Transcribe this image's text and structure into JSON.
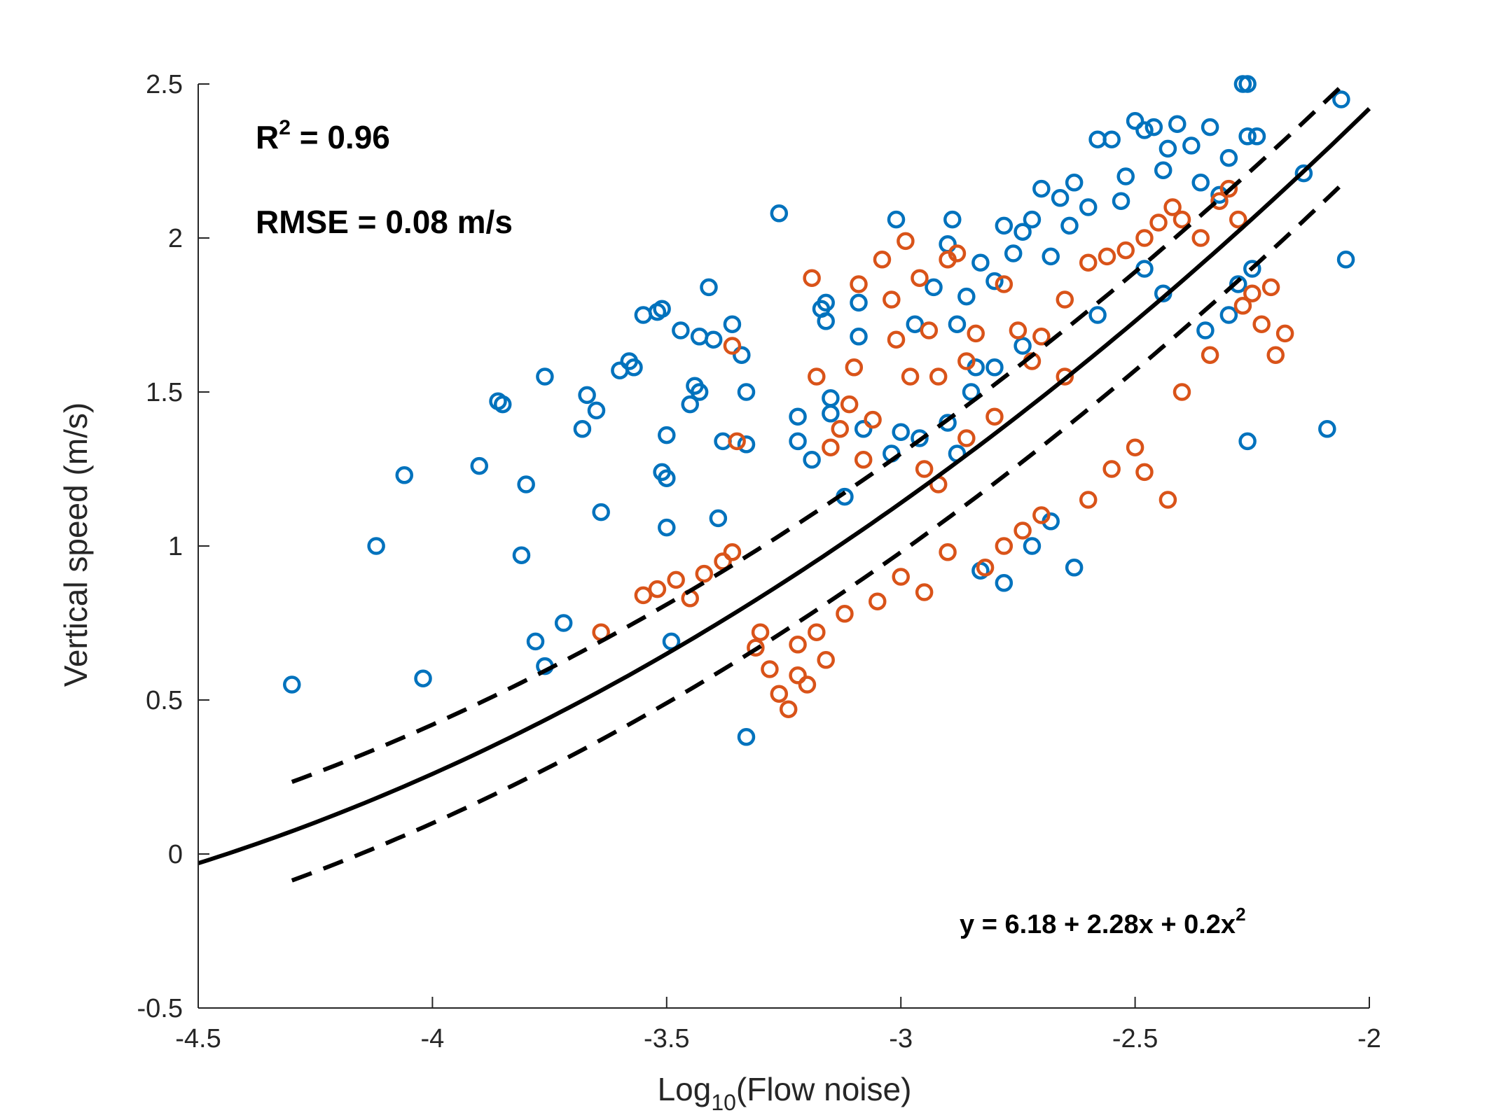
{
  "chart_data": {
    "type": "scatter",
    "xlabel_main": "Log",
    "xlabel_sub": "10",
    "xlabel_rest": "(Flow noise)",
    "ylabel": "Vertical speed (m/s)",
    "xlim": [
      -4.5,
      -2
    ],
    "ylim": [
      -0.5,
      2.5
    ],
    "xticks": [
      "-4.5",
      "-4",
      "-3.5",
      "-3",
      "-2.5",
      "-2"
    ],
    "yticks": [
      "-0.5",
      "0",
      "0.5",
      "1",
      "1.5",
      "2",
      "2.5"
    ],
    "grid": false,
    "annotations": {
      "r2_main": "R",
      "r2_sup": "2",
      "r2_rest": " = 0.96",
      "rmse": "RMSE = 0.08 m/s",
      "equation_main": "y = 6.18 + 2.28x + 0.2x",
      "equation_sup": "2"
    },
    "colors": {
      "series_blue": "#0072bd",
      "series_orange": "#d95319",
      "fit": "#000000",
      "axis": "#262626"
    },
    "fit": {
      "coefficients": [
        6.18,
        2.28,
        0.2
      ],
      "x_range": [
        -4.5,
        -2.0
      ],
      "ci_offset": 0.16,
      "ci_x_range": [
        -4.3,
        -2.05
      ]
    },
    "series": [
      {
        "color": "#0072bd",
        "points": [
          [
            -4.3,
            0.55
          ],
          [
            -4.12,
            1.0
          ],
          [
            -4.06,
            1.23
          ],
          [
            -4.02,
            0.57
          ],
          [
            -3.9,
            1.26
          ],
          [
            -3.86,
            1.47
          ],
          [
            -3.85,
            1.46
          ],
          [
            -3.8,
            1.2
          ],
          [
            -3.81,
            0.97
          ],
          [
            -3.78,
            0.69
          ],
          [
            -3.76,
            1.55
          ],
          [
            -3.76,
            0.61
          ],
          [
            -3.72,
            0.75
          ],
          [
            -3.68,
            1.38
          ],
          [
            -3.67,
            1.49
          ],
          [
            -3.65,
            1.44
          ],
          [
            -3.64,
            1.11
          ],
          [
            -3.6,
            1.57
          ],
          [
            -3.58,
            1.6
          ],
          [
            -3.57,
            1.58
          ],
          [
            -3.55,
            1.75
          ],
          [
            -3.52,
            1.76
          ],
          [
            -3.51,
            1.77
          ],
          [
            -3.5,
            1.36
          ],
          [
            -3.51,
            1.24
          ],
          [
            -3.5,
            1.22
          ],
          [
            -3.5,
            1.06
          ],
          [
            -3.49,
            0.69
          ],
          [
            -3.47,
            1.7
          ],
          [
            -3.45,
            1.46
          ],
          [
            -3.44,
            1.52
          ],
          [
            -3.43,
            1.5
          ],
          [
            -3.43,
            1.68
          ],
          [
            -3.41,
            1.84
          ],
          [
            -3.4,
            1.67
          ],
          [
            -3.39,
            1.09
          ],
          [
            -3.38,
            1.34
          ],
          [
            -3.36,
            1.72
          ],
          [
            -3.34,
            1.62
          ],
          [
            -3.33,
            1.5
          ],
          [
            -3.33,
            1.33
          ],
          [
            -3.33,
            0.38
          ],
          [
            -3.26,
            2.08
          ],
          [
            -3.22,
            1.42
          ],
          [
            -3.22,
            1.34
          ],
          [
            -3.19,
            1.28
          ],
          [
            -3.17,
            1.77
          ],
          [
            -3.16,
            1.79
          ],
          [
            -3.16,
            1.73
          ],
          [
            -3.15,
            1.48
          ],
          [
            -3.15,
            1.43
          ],
          [
            -3.12,
            1.16
          ],
          [
            -3.09,
            1.68
          ],
          [
            -3.09,
            1.79
          ],
          [
            -3.01,
            2.06
          ],
          [
            -3.0,
            1.37
          ],
          [
            -2.97,
            1.72
          ],
          [
            -2.93,
            1.84
          ],
          [
            -2.9,
            1.98
          ],
          [
            -2.89,
            2.06
          ],
          [
            -2.88,
            1.72
          ],
          [
            -2.86,
            1.81
          ],
          [
            -2.84,
            1.58
          ],
          [
            -2.83,
            1.92
          ],
          [
            -2.8,
            1.86
          ],
          [
            -2.78,
            2.04
          ],
          [
            -2.76,
            1.95
          ],
          [
            -2.74,
            2.02
          ],
          [
            -2.72,
            2.06
          ],
          [
            -2.7,
            2.16
          ],
          [
            -2.68,
            1.94
          ],
          [
            -2.66,
            2.13
          ],
          [
            -2.64,
            2.04
          ],
          [
            -2.63,
            2.18
          ],
          [
            -2.6,
            2.1
          ],
          [
            -2.58,
            2.32
          ],
          [
            -2.55,
            2.32
          ],
          [
            -2.53,
            2.12
          ],
          [
            -2.52,
            2.2
          ],
          [
            -2.5,
            2.38
          ],
          [
            -2.48,
            2.35
          ],
          [
            -2.46,
            2.36
          ],
          [
            -2.44,
            2.22
          ],
          [
            -2.43,
            2.29
          ],
          [
            -2.41,
            2.37
          ],
          [
            -2.38,
            2.3
          ],
          [
            -2.36,
            2.18
          ],
          [
            -2.34,
            2.36
          ],
          [
            -2.32,
            2.14
          ],
          [
            -2.3,
            2.26
          ],
          [
            -2.27,
            2.5
          ],
          [
            -2.26,
            2.5
          ],
          [
            -2.26,
            2.33
          ],
          [
            -2.24,
            2.33
          ],
          [
            -2.26,
            1.34
          ],
          [
            -2.14,
            2.21
          ],
          [
            -2.09,
            1.38
          ],
          [
            -2.06,
            2.45
          ],
          [
            -2.05,
            1.93
          ],
          [
            -2.3,
            1.75
          ],
          [
            -2.28,
            1.85
          ],
          [
            -2.35,
            1.7
          ],
          [
            -2.25,
            1.9
          ],
          [
            -2.44,
            1.82
          ],
          [
            -2.48,
            1.9
          ],
          [
            -2.58,
            1.75
          ],
          [
            -2.63,
            0.93
          ],
          [
            -2.78,
            0.88
          ],
          [
            -2.83,
            0.92
          ],
          [
            -2.68,
            1.08
          ],
          [
            -2.72,
            1.0
          ],
          [
            -2.96,
            1.35
          ],
          [
            -3.02,
            1.3
          ],
          [
            -3.08,
            1.38
          ],
          [
            -2.9,
            1.4
          ],
          [
            -2.85,
            1.5
          ],
          [
            -2.88,
            1.3
          ],
          [
            -2.8,
            1.58
          ],
          [
            -2.74,
            1.65
          ]
        ]
      },
      {
        "color": "#d95319",
        "points": [
          [
            -3.64,
            0.72
          ],
          [
            -3.55,
            0.84
          ],
          [
            -3.52,
            0.86
          ],
          [
            -3.48,
            0.89
          ],
          [
            -3.45,
            0.83
          ],
          [
            -3.42,
            0.91
          ],
          [
            -3.38,
            0.95
          ],
          [
            -3.36,
            0.98
          ],
          [
            -3.35,
            1.34
          ],
          [
            -3.36,
            1.65
          ],
          [
            -3.31,
            0.67
          ],
          [
            -3.28,
            0.6
          ],
          [
            -3.26,
            0.52
          ],
          [
            -3.24,
            0.47
          ],
          [
            -3.22,
            0.58
          ],
          [
            -3.2,
            0.55
          ],
          [
            -3.19,
            1.87
          ],
          [
            -3.18,
            1.55
          ],
          [
            -3.16,
            0.63
          ],
          [
            -3.13,
            1.38
          ],
          [
            -3.11,
            1.46
          ],
          [
            -3.1,
            1.58
          ],
          [
            -3.09,
            1.85
          ],
          [
            -3.06,
            1.41
          ],
          [
            -3.04,
            1.93
          ],
          [
            -3.02,
            1.8
          ],
          [
            -3.01,
            1.67
          ],
          [
            -2.99,
            1.99
          ],
          [
            -2.98,
            1.55
          ],
          [
            -2.96,
            1.87
          ],
          [
            -2.94,
            1.7
          ],
          [
            -2.92,
            1.55
          ],
          [
            -2.9,
            1.93
          ],
          [
            -2.88,
            1.95
          ],
          [
            -2.86,
            1.6
          ],
          [
            -2.84,
            1.69
          ],
          [
            -2.78,
            1.85
          ],
          [
            -2.75,
            1.7
          ],
          [
            -2.72,
            1.6
          ],
          [
            -2.7,
            1.68
          ],
          [
            -2.65,
            1.8
          ],
          [
            -2.6,
            1.92
          ],
          [
            -2.56,
            1.94
          ],
          [
            -2.52,
            1.96
          ],
          [
            -2.48,
            2.0
          ],
          [
            -2.45,
            2.05
          ],
          [
            -2.42,
            2.1
          ],
          [
            -2.4,
            2.06
          ],
          [
            -2.36,
            2.0
          ],
          [
            -2.32,
            2.12
          ],
          [
            -2.3,
            2.16
          ],
          [
            -2.28,
            2.06
          ],
          [
            -2.25,
            1.82
          ],
          [
            -2.23,
            1.72
          ],
          [
            -2.21,
            1.84
          ],
          [
            -2.18,
            1.69
          ],
          [
            -2.2,
            1.62
          ],
          [
            -2.27,
            1.78
          ],
          [
            -2.34,
            1.62
          ],
          [
            -2.4,
            1.5
          ],
          [
            -2.5,
            1.32
          ],
          [
            -2.48,
            1.24
          ],
          [
            -2.43,
            1.15
          ],
          [
            -2.55,
            1.25
          ],
          [
            -2.6,
            1.15
          ],
          [
            -2.7,
            1.1
          ],
          [
            -2.74,
            1.05
          ],
          [
            -2.78,
            1.0
          ],
          [
            -2.82,
            0.93
          ],
          [
            -2.9,
            0.98
          ],
          [
            -2.95,
            0.85
          ],
          [
            -3.0,
            0.9
          ],
          [
            -3.05,
            0.82
          ],
          [
            -3.12,
            0.78
          ],
          [
            -3.18,
            0.72
          ],
          [
            -3.22,
            0.68
          ],
          [
            -3.3,
            0.72
          ],
          [
            -2.92,
            1.2
          ],
          [
            -2.95,
            1.25
          ],
          [
            -3.15,
            1.32
          ],
          [
            -3.08,
            1.28
          ],
          [
            -2.86,
            1.35
          ],
          [
            -2.8,
            1.42
          ],
          [
            -2.65,
            1.55
          ]
        ]
      }
    ]
  }
}
